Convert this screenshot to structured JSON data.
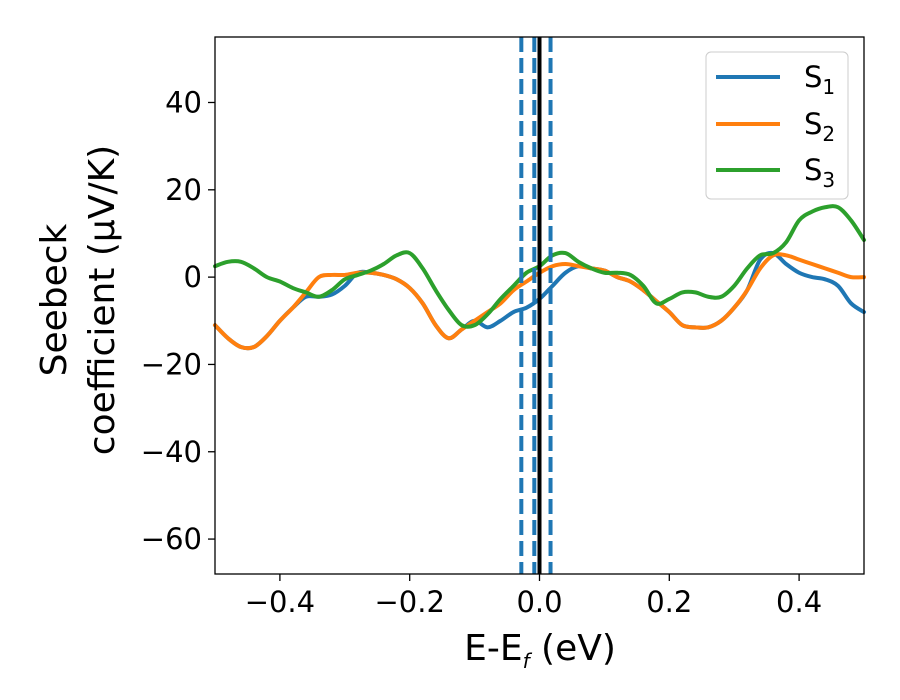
{
  "chart_data": {
    "type": "line",
    "xlabel": {
      "main": "E-E",
      "sub": "f",
      "unit": " (eV)"
    },
    "ylabel": {
      "line1": "Seebeck",
      "line2": "coefficient  (μV/K)"
    },
    "xlim": [
      -0.5,
      0.5
    ],
    "ylim": [
      -68,
      55
    ],
    "xticks": [
      -0.4,
      -0.2,
      0.0,
      0.2,
      0.4
    ],
    "xtick_labels": [
      "−0.4",
      "−0.2",
      "0.0",
      "0.2",
      "0.4"
    ],
    "yticks": [
      40,
      20,
      0,
      -20,
      -40,
      -60
    ],
    "ytick_labels": [
      "40",
      "20",
      "0",
      "−20",
      "−40",
      "−60"
    ],
    "grid": false,
    "legend_position": "top-right",
    "vertical_lines": [
      {
        "x": 0.0,
        "style": "solid",
        "color": "#000000"
      },
      {
        "x": -0.028,
        "style": "dashed",
        "color": "#1f77b4"
      },
      {
        "x": -0.008,
        "style": "dashed",
        "color": "#1f77b4"
      },
      {
        "x": 0.017,
        "style": "dashed",
        "color": "#1f77b4"
      }
    ],
    "x": [
      -0.5,
      -0.48,
      -0.46,
      -0.44,
      -0.42,
      -0.4,
      -0.38,
      -0.36,
      -0.34,
      -0.32,
      -0.3,
      -0.28,
      -0.26,
      -0.24,
      -0.22,
      -0.2,
      -0.18,
      -0.16,
      -0.14,
      -0.12,
      -0.1,
      -0.08,
      -0.06,
      -0.04,
      -0.02,
      0.0,
      0.02,
      0.04,
      0.06,
      0.08,
      0.1,
      0.12,
      0.14,
      0.16,
      0.18,
      0.2,
      0.22,
      0.24,
      0.26,
      0.28,
      0.3,
      0.32,
      0.34,
      0.36,
      0.38,
      0.4,
      0.42,
      0.44,
      0.46,
      0.48,
      0.5
    ],
    "series": [
      {
        "name": "S",
        "name_sub": "1",
        "color": "#1f77b4",
        "values": [
          -11,
          -14,
          -16,
          -16,
          -13.5,
          -10,
          -7,
          -4.5,
          -4.5,
          -4,
          -2,
          1,
          1,
          0.5,
          -0.5,
          -2.5,
          -6,
          -11,
          -14,
          -12,
          -10,
          -11.5,
          -10,
          -8,
          -7,
          -5,
          -2,
          1,
          2.5,
          2,
          1.5,
          0,
          -1,
          -3,
          -5.5,
          -8,
          -11,
          -11.5,
          -11.5,
          -10,
          -7,
          -3,
          4,
          5.5,
          3,
          1,
          0,
          -0.5,
          -2,
          -6,
          -8
        ]
      },
      {
        "name": "S",
        "name_sub": "2",
        "color": "#ff7f0e",
        "values": [
          -11,
          -14,
          -16,
          -16,
          -13.5,
          -10,
          -7,
          -3.5,
          0,
          0.5,
          0.5,
          1,
          1,
          0.5,
          -0.5,
          -2.5,
          -6,
          -11,
          -14,
          -12,
          -10,
          -8,
          -6,
          -3,
          -1,
          1,
          2.5,
          3,
          2.5,
          2,
          1.5,
          0,
          -1,
          -3,
          -5.5,
          -8,
          -11,
          -11.5,
          -11.5,
          -10,
          -7,
          -3,
          2,
          5,
          5,
          4,
          3,
          2,
          1,
          0,
          0
        ]
      },
      {
        "name": "S",
        "name_sub": "3",
        "color": "#2ca02c",
        "values": [
          2.5,
          3.5,
          3.5,
          2,
          0,
          -1,
          -2.5,
          -3.5,
          -4.5,
          -3,
          -0.5,
          0.5,
          1.5,
          3,
          5,
          5.5,
          2,
          -3,
          -7.5,
          -11,
          -11,
          -8.5,
          -5,
          -2,
          1,
          2.5,
          5,
          5.5,
          3.5,
          2,
          1,
          1,
          0.5,
          -2,
          -6,
          -5,
          -3.5,
          -3.5,
          -4.5,
          -4.5,
          -2,
          2,
          5,
          5.5,
          8,
          13,
          15,
          16,
          16,
          13,
          8.5
        ]
      }
    ]
  }
}
